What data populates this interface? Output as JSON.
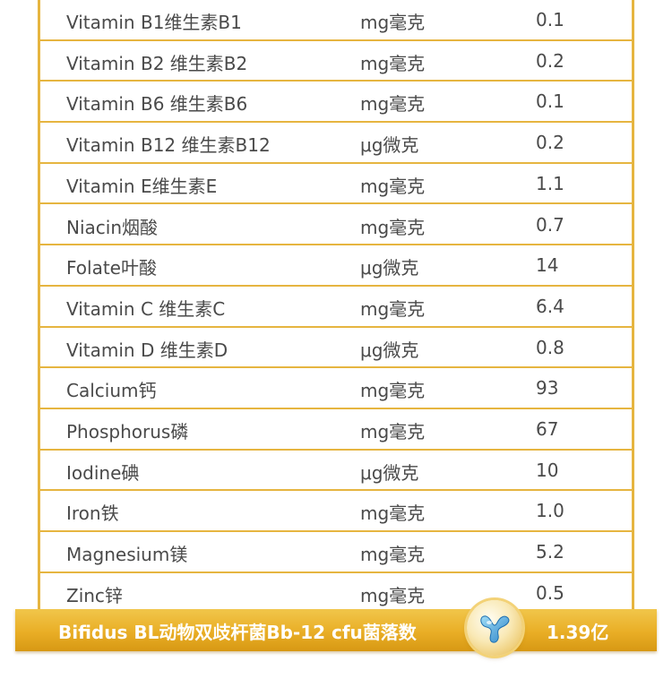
{
  "rows": [
    {
      "name": "Vitamin B1维生素B1",
      "unit": "mg毫克",
      "value": "0.1"
    },
    {
      "name": "Vitamin B2 维生素B2",
      "unit": "mg毫克",
      "value": "0.2"
    },
    {
      "name": "Vitamin B6 维生素B6",
      "unit": "mg毫克",
      "value": "0.1"
    },
    {
      "name": "Vitamin B12 维生素B12",
      "unit": "μg微克",
      "value": "0.2"
    },
    {
      "name": "Vitamin E维生素E",
      "unit": "mg毫克",
      "value": "1.1"
    },
    {
      "name": "Niacin烟酸",
      "unit": "mg毫克",
      "value": "0.7"
    },
    {
      "name": "Folate叶酸",
      "unit": "μg微克",
      "value": "14"
    },
    {
      "name": "Vitamin C 维生素C",
      "unit": "mg毫克",
      "value": "6.4"
    },
    {
      "name": "Vitamin D  维生素D",
      "unit": "μg微克",
      "value": "0.8"
    },
    {
      "name": "Calcium钙",
      "unit": "mg毫克",
      "value": "93"
    },
    {
      "name": "Phosphorus磷",
      "unit": "mg毫克",
      "value": "67"
    },
    {
      "name": "Iodine碘",
      "unit": "μg微克",
      "value": "10"
    },
    {
      "name": "Iron铁",
      "unit": "mg毫克",
      "value": "1.0"
    },
    {
      "name": "Magnesium镁",
      "unit": "mg毫克",
      "value": "5.2"
    },
    {
      "name": "Zinc锌",
      "unit": "mg毫克",
      "value": "0.5"
    }
  ],
  "banner": {
    "label": "Bifidus BL动物双歧杆菌Bb-12   cfu菌落数",
    "value": "1.39亿",
    "icon": "probiotic-badge-icon"
  },
  "colors": {
    "border": "#e6b540",
    "text": "#4a4a4a",
    "banner": "#e9ae26"
  }
}
